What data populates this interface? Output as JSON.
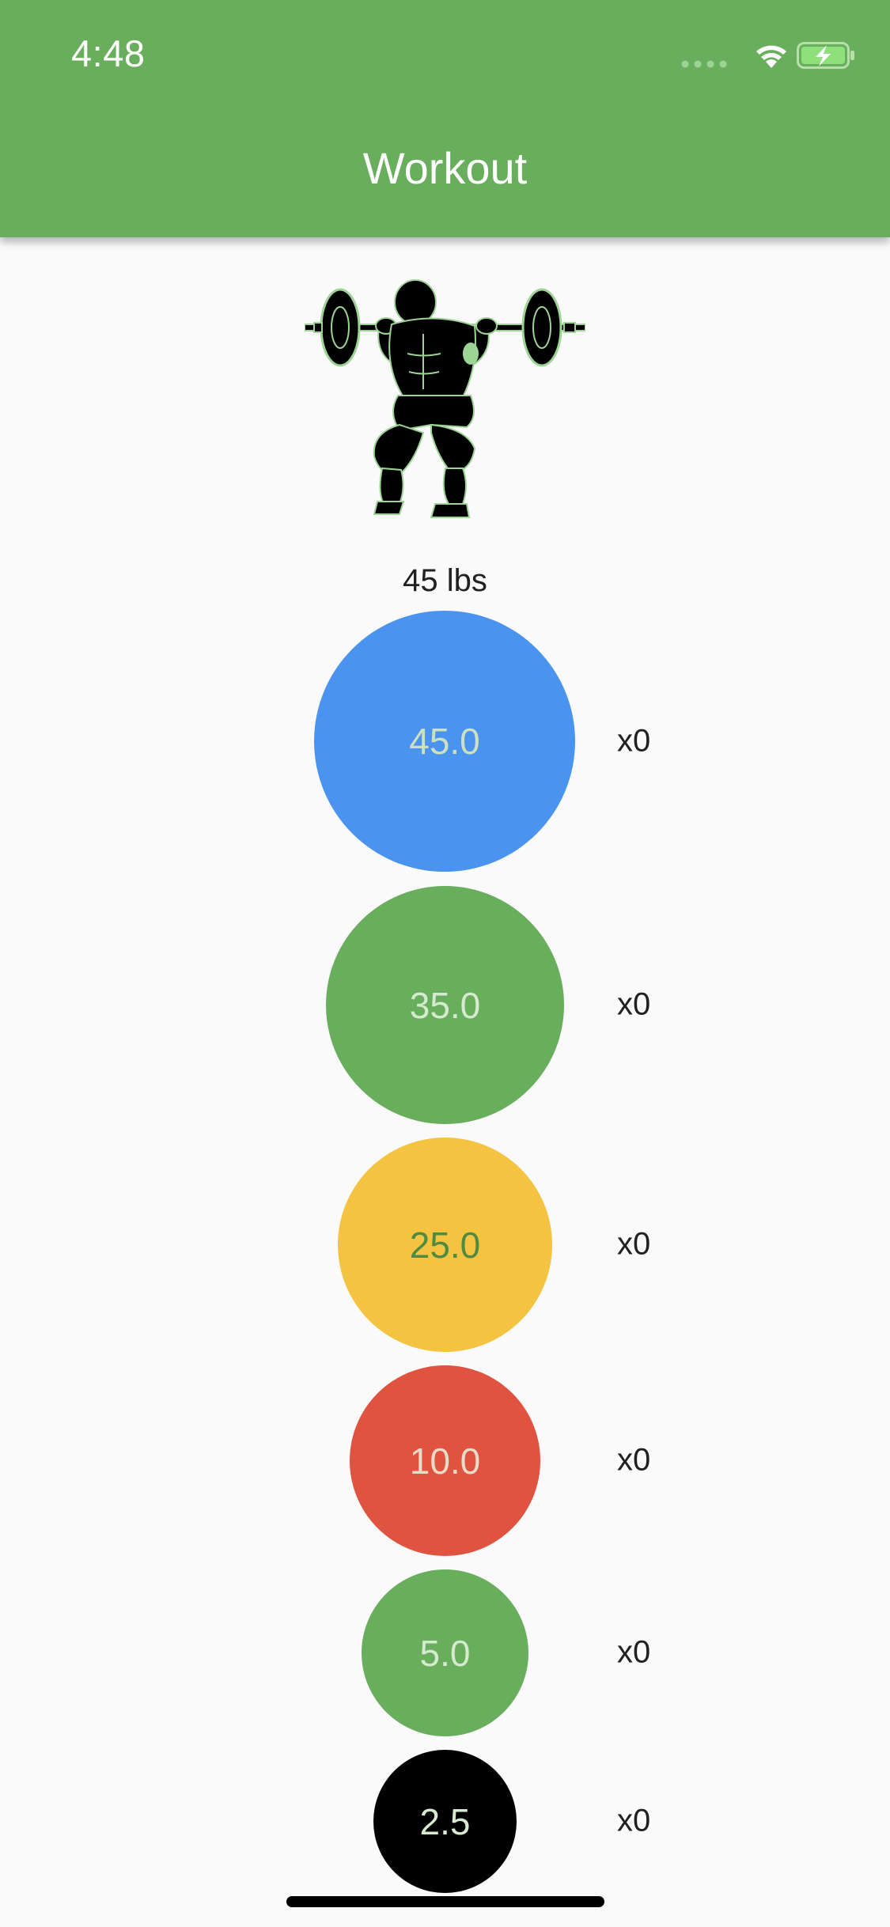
{
  "status_bar": {
    "time": "4:48"
  },
  "header": {
    "title": "Workout"
  },
  "workout": {
    "total_weight": "45 lbs",
    "plates": [
      {
        "label": "45.0",
        "count": "x0",
        "color": "#4a93ef",
        "text_color": "#cfe0c0"
      },
      {
        "label": "35.0",
        "count": "x0",
        "color": "#69ae5d",
        "text_color": "#d6ead0"
      },
      {
        "label": "25.0",
        "count": "x0",
        "color": "#f5c342",
        "text_color": "#4f8a3f"
      },
      {
        "label": "10.0",
        "count": "x0",
        "color": "#e15341",
        "text_color": "#e8dcc8"
      },
      {
        "label": "5.0",
        "count": "x0",
        "color": "#69ae5d",
        "text_color": "#d6ead0"
      },
      {
        "label": "2.5",
        "count": "x0",
        "color": "#000000",
        "text_color": "#d6ead0"
      }
    ]
  },
  "icons": {
    "hero": "barbell-squat-figure-icon",
    "signal": "cellular-signal-icon",
    "wifi": "wifi-icon",
    "battery": "battery-charging-icon"
  },
  "accent_color": "#69ae5d"
}
